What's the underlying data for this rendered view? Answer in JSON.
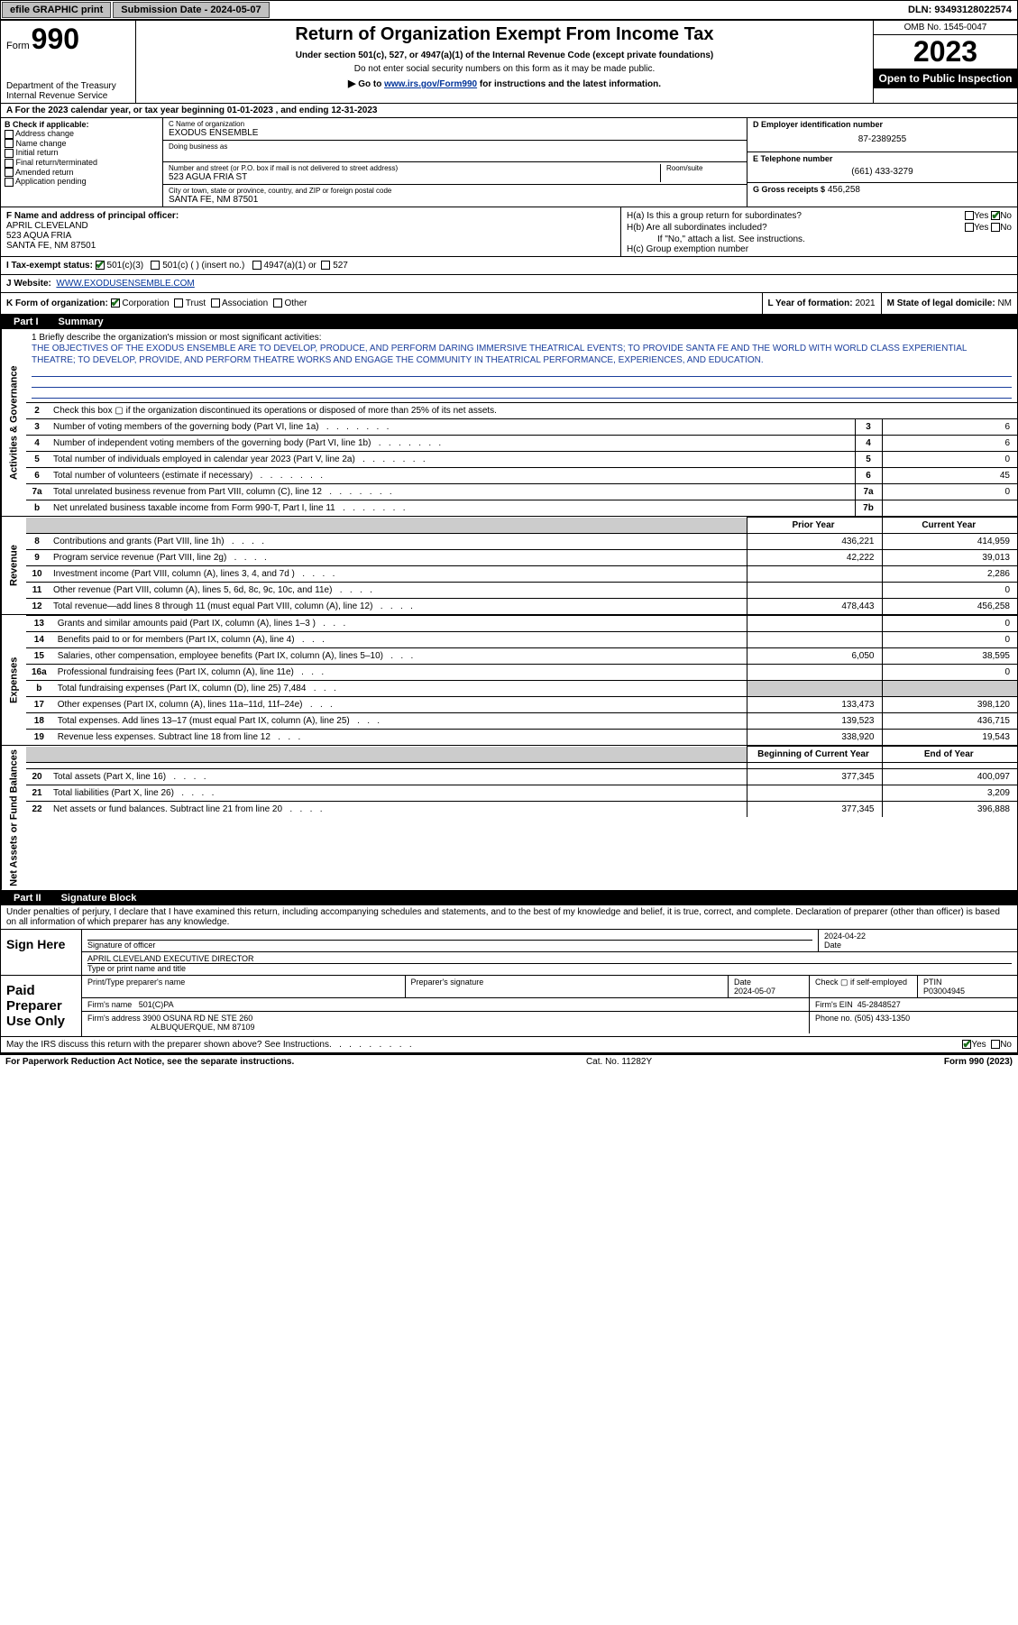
{
  "topbar": {
    "efile": "efile GRAPHIC print",
    "submission_label": "Submission Date - 2024-05-07",
    "dln": "DLN: 93493128022574"
  },
  "header": {
    "form_word": "Form",
    "form_num": "990",
    "dept": "Department of the Treasury",
    "irs": "Internal Revenue Service",
    "title": "Return of Organization Exempt From Income Tax",
    "sub": "Under section 501(c), 527, or 4947(a)(1) of the Internal Revenue Code (except private foundations)",
    "sub2": "Do not enter social security numbers on this form as it may be made public.",
    "goto_prefix": "Go to ",
    "goto_link": "www.irs.gov/Form990",
    "goto_suffix": " for instructions and the latest information.",
    "omb": "OMB No. 1545-0047",
    "year": "2023",
    "open": "Open to Public Inspection"
  },
  "row_a": "A   For the 2023 calendar year, or tax year beginning 01-01-2023    , and ending 12-31-2023",
  "col_b": {
    "title": "B Check if applicable:",
    "items": [
      "Address change",
      "Name change",
      "Initial return",
      "Final return/terminated",
      "Amended return",
      "Application pending"
    ]
  },
  "col_c": {
    "name_label": "C Name of organization",
    "name": "EXODUS ENSEMBLE",
    "dba_label": "Doing business as",
    "addr_label": "Number and street (or P.O. box if mail is not delivered to street address)",
    "room_label": "Room/suite",
    "addr": "523 AGUA FRIA ST",
    "city_label": "City or town, state or province, country, and ZIP or foreign postal code",
    "city": "SANTA FE, NM  87501"
  },
  "col_de": {
    "d_label": "D Employer identification number",
    "d_val": "87-2389255",
    "e_label": "E Telephone number",
    "e_val": "(661) 433-3279",
    "g_label": "G Gross receipts $",
    "g_val": "456,258"
  },
  "col_f": {
    "label": "F Name and address of principal officer:",
    "name": "APRIL CLEVELAND",
    "addr": "523 AQUA FRIA",
    "city": "SANTA FE, NM  87501"
  },
  "col_h": {
    "ha": "H(a)  Is this a group return for subordinates?",
    "hb": "H(b)  Are all subordinates included?",
    "hb_note": "If \"No,\" attach a list. See instructions.",
    "hc": "H(c)  Group exemption number ",
    "yes": "Yes",
    "no": "No"
  },
  "row_i": {
    "label": "I   Tax-exempt status:",
    "c3": "501(c)(3)",
    "c": "501(c) (   ) (insert no.)",
    "a1": "4947(a)(1) or",
    "s527": "527"
  },
  "row_j": {
    "label": "J   Website:",
    "val": "WWW.EXODUSENSEMBLE.COM"
  },
  "row_k": {
    "label": "K Form of organization:",
    "corp": "Corporation",
    "trust": "Trust",
    "assoc": "Association",
    "other": "Other"
  },
  "row_l": {
    "label": "L Year of formation:",
    "val": "2021"
  },
  "row_m": {
    "label": "M State of legal domicile:",
    "val": "NM"
  },
  "part1": {
    "num": "Part I",
    "name": "Summary"
  },
  "side_labels": {
    "gov": "Activities & Governance",
    "rev": "Revenue",
    "exp": "Expenses",
    "net": "Net Assets or Fund Balances"
  },
  "mission": {
    "q": "1   Briefly describe the organization's mission or most significant activities:",
    "text": "THE OBJECTIVES OF THE EXODUS ENSEMBLE ARE TO DEVELOP, PRODUCE, AND PERFORM DARING IMMERSIVE THEATRICAL EVENTS; TO PROVIDE SANTA FE AND THE WORLD WITH WORLD CLASS EXPERIENTIAL THEATRE; TO DEVELOP, PROVIDE, AND PERFORM THEATRE WORKS AND ENGAGE THE COMMUNITY IN THEATRICAL PERFORMANCE, EXPERIENCES, AND EDUCATION."
  },
  "gov_rows": [
    {
      "n": "2",
      "d": "Check this box  ▢  if the organization discontinued its operations or disposed of more than 25% of its net assets."
    },
    {
      "n": "3",
      "d": "Number of voting members of the governing body (Part VI, line 1a)",
      "k": "3",
      "v": "6"
    },
    {
      "n": "4",
      "d": "Number of independent voting members of the governing body (Part VI, line 1b)",
      "k": "4",
      "v": "6"
    },
    {
      "n": "5",
      "d": "Total number of individuals employed in calendar year 2023 (Part V, line 2a)",
      "k": "5",
      "v": "0"
    },
    {
      "n": "6",
      "d": "Total number of volunteers (estimate if necessary)",
      "k": "6",
      "v": "45"
    },
    {
      "n": "7a",
      "d": "Total unrelated business revenue from Part VIII, column (C), line 12",
      "k": "7a",
      "v": "0"
    },
    {
      "n": "b",
      "d": "Net unrelated business taxable income from Form 990-T, Part I, line 11",
      "k": "7b",
      "v": ""
    }
  ],
  "rev_hdr": {
    "py": "Prior Year",
    "cy": "Current Year"
  },
  "rev_rows": [
    {
      "n": "8",
      "d": "Contributions and grants (Part VIII, line 1h)",
      "py": "436,221",
      "cy": "414,959"
    },
    {
      "n": "9",
      "d": "Program service revenue (Part VIII, line 2g)",
      "py": "42,222",
      "cy": "39,013"
    },
    {
      "n": "10",
      "d": "Investment income (Part VIII, column (A), lines 3, 4, and 7d )",
      "py": "",
      "cy": "2,286"
    },
    {
      "n": "11",
      "d": "Other revenue (Part VIII, column (A), lines 5, 6d, 8c, 9c, 10c, and 11e)",
      "py": "",
      "cy": "0"
    },
    {
      "n": "12",
      "d": "Total revenue—add lines 8 through 11 (must equal Part VIII, column (A), line 12)",
      "py": "478,443",
      "cy": "456,258"
    }
  ],
  "exp_rows": [
    {
      "n": "13",
      "d": "Grants and similar amounts paid (Part IX, column (A), lines 1–3 )",
      "py": "",
      "cy": "0"
    },
    {
      "n": "14",
      "d": "Benefits paid to or for members (Part IX, column (A), line 4)",
      "py": "",
      "cy": "0"
    },
    {
      "n": "15",
      "d": "Salaries, other compensation, employee benefits (Part IX, column (A), lines 5–10)",
      "py": "6,050",
      "cy": "38,595"
    },
    {
      "n": "16a",
      "d": "Professional fundraising fees (Part IX, column (A), line 11e)",
      "py": "",
      "cy": "0"
    },
    {
      "n": "b",
      "d": "Total fundraising expenses (Part IX, column (D), line 25) 7,484",
      "py": "shade",
      "cy": "shade"
    },
    {
      "n": "17",
      "d": "Other expenses (Part IX, column (A), lines 11a–11d, 11f–24e)",
      "py": "133,473",
      "cy": "398,120"
    },
    {
      "n": "18",
      "d": "Total expenses. Add lines 13–17 (must equal Part IX, column (A), line 25)",
      "py": "139,523",
      "cy": "436,715"
    },
    {
      "n": "19",
      "d": "Revenue less expenses. Subtract line 18 from line 12",
      "py": "338,920",
      "cy": "19,543"
    }
  ],
  "net_hdr": {
    "py": "Beginning of Current Year",
    "cy": "End of Year"
  },
  "net_rows": [
    {
      "n": "20",
      "d": "Total assets (Part X, line 16)",
      "py": "377,345",
      "cy": "400,097"
    },
    {
      "n": "21",
      "d": "Total liabilities (Part X, line 26)",
      "py": "",
      "cy": "3,209"
    },
    {
      "n": "22",
      "d": "Net assets or fund balances. Subtract line 21 from line 20",
      "py": "377,345",
      "cy": "396,888"
    }
  ],
  "part2": {
    "num": "Part II",
    "name": "Signature Block"
  },
  "sig": {
    "disclaim": "Under penalties of perjury, I declare that I have examined this return, including accompanying schedules and statements, and to the best of my knowledge and belief, it is true, correct, and complete. Declaration of preparer (other than officer) is based on all information of which preparer has any knowledge.",
    "sign_here": "Sign Here",
    "sig_officer": "Signature of officer",
    "date": "Date",
    "date_val": "2024-04-22",
    "officer": "APRIL CLEVELAND  EXECUTIVE DIRECTOR",
    "type_name": "Type or print name and title",
    "paid": "Paid Preparer Use Only",
    "print_name": "Print/Type preparer's name",
    "prep_sig": "Preparer's signature",
    "prep_date": "2024-05-07",
    "check_if": "Check ▢ if self-employed",
    "ptin_label": "PTIN",
    "ptin": "P03004945",
    "firm_label": "Firm's name",
    "firm": "501(C)PA",
    "firm_ein_label": "Firm's EIN",
    "firm_ein": "45-2848527",
    "firm_addr_label": "Firm's address",
    "firm_addr": "3900 OSUNA RD NE STE 260",
    "firm_city": "ALBUQUERQUE, NM  87109",
    "phone_label": "Phone no.",
    "phone": "(505) 433-1350",
    "discuss": "May the IRS discuss this return with the preparer shown above? See Instructions."
  },
  "footer": {
    "l": "For Paperwork Reduction Act Notice, see the separate instructions.",
    "m": "Cat. No. 11282Y",
    "r": "Form 990 (2023)"
  }
}
